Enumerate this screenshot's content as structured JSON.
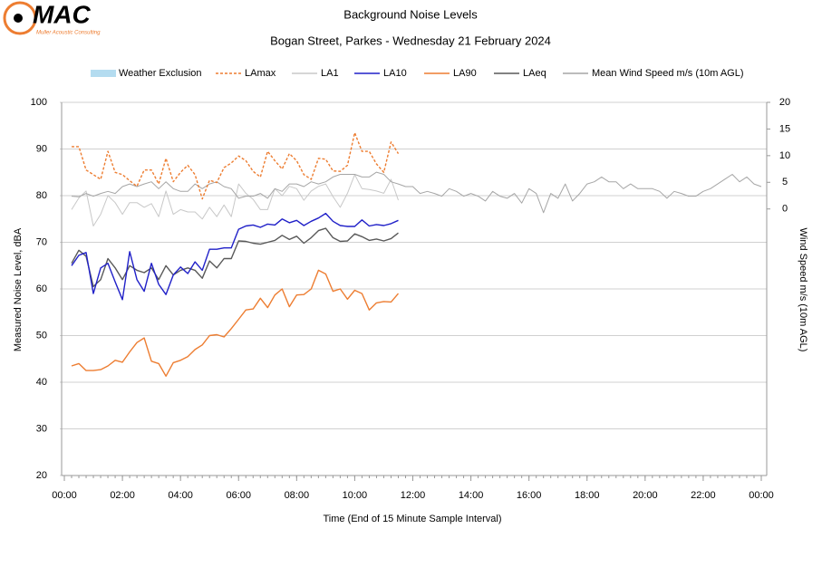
{
  "logo": {
    "text": "MAC",
    "tagline": "Muller Acoustic Consulting"
  },
  "chart_data": {
    "type": "line",
    "title": "Background Noise Levels",
    "subtitle": "Bogan Street, Parkes - Wednesday 21 February 2024",
    "xlabel": "Time (End of 15 Minute Sample Interval)",
    "ylabel": "Measured Noise Level, dBA",
    "y2label": "Wind Speed m/s (10m AGL)",
    "exclusion": {
      "name": "Weather Exclusion",
      "color": "#b4dcf0",
      "ranges": []
    },
    "xlim": [
      0,
      24
    ],
    "xticks": [
      {
        "value": 0,
        "label": "00:00"
      },
      {
        "value": 2,
        "label": "02:00"
      },
      {
        "value": 4,
        "label": "04:00"
      },
      {
        "value": 6,
        "label": "06:00"
      },
      {
        "value": 8,
        "label": "08:00"
      },
      {
        "value": 10,
        "label": "10:00"
      },
      {
        "value": 12,
        "label": "12:00"
      },
      {
        "value": 14,
        "label": "14:00"
      },
      {
        "value": 16,
        "label": "16:00"
      },
      {
        "value": 18,
        "label": "18:00"
      },
      {
        "value": 20,
        "label": "20:00"
      },
      {
        "value": 22,
        "label": "22:00"
      },
      {
        "value": 24,
        "label": "00:00"
      }
    ],
    "ylim": [
      20,
      100
    ],
    "yticks": [
      20,
      30,
      40,
      50,
      60,
      70,
      80,
      90,
      100
    ],
    "y2lim": [
      -50,
      20
    ],
    "y2ticks": [
      0,
      5,
      10,
      15,
      20
    ],
    "grid": true,
    "x": [
      0.25,
      0.5,
      0.75,
      1,
      1.25,
      1.5,
      1.75,
      2,
      2.25,
      2.5,
      2.75,
      3,
      3.25,
      3.5,
      3.75,
      4,
      4.25,
      4.5,
      4.75,
      5,
      5.25,
      5.5,
      5.75,
      6,
      6.25,
      6.5,
      6.75,
      7,
      7.25,
      7.5,
      7.75,
      8,
      8.25,
      8.5,
      8.75,
      9,
      9.25,
      9.5,
      9.75,
      10,
      10.25,
      10.5,
      10.75,
      11,
      11.25,
      11.5,
      11.75,
      12,
      12.25,
      12.5,
      12.75,
      13,
      13.25,
      13.5,
      13.75,
      14,
      14.25,
      14.5,
      14.75,
      15,
      15.25,
      15.5,
      15.75,
      16,
      16.25,
      16.5,
      16.75,
      17,
      17.25,
      17.5,
      17.75,
      18,
      18.25,
      18.5,
      18.75,
      19,
      19.25,
      19.5,
      19.75,
      20,
      20.25,
      20.5,
      20.75,
      21,
      21.25,
      21.5,
      21.75,
      22,
      22.25,
      22.5,
      22.75,
      23,
      23.25,
      23.5,
      23.75,
      24
    ],
    "series": [
      {
        "name": "LAmax",
        "color": "#ed7d31",
        "dashed": true,
        "values": [
          90.5,
          90.5,
          85.5,
          84.5,
          83.5,
          89.5,
          85,
          84.5,
          83.2,
          82,
          85.5,
          85.5,
          82.5,
          88,
          83,
          85,
          86.5,
          84.5,
          79.3,
          83.3,
          82.8,
          86,
          87,
          88.5,
          87.5,
          85.2,
          84,
          89.5,
          87.5,
          85.7,
          89,
          87.5,
          84.5,
          83.5,
          88,
          87.8,
          85.3,
          85.2,
          86.5,
          93.5,
          89.5,
          89.5,
          86.8,
          85,
          91.5,
          89,
          null,
          null,
          null,
          null,
          null,
          null,
          null,
          null,
          null,
          null,
          null,
          null,
          null,
          null,
          null,
          null,
          null,
          null,
          null,
          null,
          null,
          null,
          null,
          null,
          null,
          null,
          null,
          null,
          null,
          null,
          null,
          null,
          null,
          null,
          null,
          null,
          null,
          null,
          null,
          null,
          null,
          null,
          null,
          null,
          null,
          null,
          null,
          null,
          null,
          null
        ]
      },
      {
        "name": "LA1",
        "color": "#c8c8c8",
        "values": [
          77,
          79.5,
          81,
          73.5,
          76,
          80,
          78.5,
          76,
          78.5,
          78.5,
          77.5,
          78.3,
          75.5,
          81,
          76,
          77,
          76.5,
          76.5,
          75,
          77.5,
          75.5,
          78,
          75.5,
          82.5,
          80.5,
          79.2,
          77,
          77,
          81.5,
          80,
          82,
          81.5,
          79,
          81,
          82,
          82.5,
          79.8,
          77.5,
          80.5,
          84.5,
          81.5,
          81.3,
          81,
          80.5,
          83.5,
          79,
          null,
          null,
          null,
          null,
          null,
          null,
          null,
          null,
          null,
          null,
          null,
          null,
          null,
          null,
          null,
          null,
          null,
          null,
          null,
          null,
          null,
          null,
          null,
          null,
          null,
          null,
          null,
          null,
          null,
          null,
          null,
          null,
          null,
          null,
          null,
          null,
          null,
          null,
          null,
          null,
          null,
          null,
          null,
          null,
          null,
          null,
          null,
          null,
          null,
          null
        ]
      },
      {
        "name": "LA10",
        "color": "#2020c8",
        "values": [
          65,
          67.2,
          67.8,
          59,
          64.5,
          65.5,
          61.5,
          57.7,
          68,
          62,
          59.5,
          65.5,
          61,
          58.8,
          63,
          64.7,
          63.3,
          65.8,
          64,
          68.5,
          68.5,
          68.8,
          68.8,
          72.8,
          73.5,
          73.7,
          73.2,
          73.9,
          73.7,
          75,
          74.2,
          74.7,
          73.6,
          74.5,
          75.2,
          76.2,
          74.5,
          73.6,
          73.4,
          73.4,
          74.8,
          73.5,
          73.8,
          73.6,
          74,
          74.7,
          null,
          null,
          null,
          null,
          null,
          null,
          null,
          null,
          null,
          null,
          null,
          null,
          null,
          null,
          null,
          null,
          null,
          null,
          null,
          null,
          null,
          null,
          null,
          null,
          null,
          null,
          null,
          null,
          null,
          null,
          null,
          null,
          null,
          null,
          null,
          null,
          null,
          null,
          null,
          null,
          null,
          null,
          null,
          null,
          null,
          null,
          null,
          null,
          null,
          null
        ]
      },
      {
        "name": "LA90",
        "color": "#ed7d31",
        "values": [
          43.5,
          44,
          42.5,
          42.5,
          42.7,
          43.5,
          44.7,
          44.3,
          46.5,
          48.5,
          49.5,
          44.5,
          44,
          41.3,
          44.2,
          44.7,
          45.5,
          47,
          48,
          50,
          50.2,
          49.7,
          51.5,
          53.5,
          55.5,
          55.7,
          58,
          56,
          58.7,
          60,
          56.2,
          58.7,
          58.8,
          60,
          64,
          63.2,
          59.5,
          60,
          57.8,
          59.7,
          59,
          55.5,
          57,
          57.3,
          57.2,
          59,
          null,
          null,
          null,
          null,
          null,
          null,
          null,
          null,
          null,
          null,
          null,
          null,
          null,
          null,
          null,
          null,
          null,
          null,
          null,
          null,
          null,
          null,
          null,
          null,
          null,
          null,
          null,
          null,
          null,
          null,
          null,
          null,
          null,
          null,
          null,
          null,
          null,
          null,
          null,
          null,
          null,
          null,
          null,
          null,
          null,
          null,
          null,
          null,
          null,
          null
        ]
      },
      {
        "name": "LAeq",
        "color": "#595959",
        "values": [
          65.5,
          68.3,
          67,
          60.5,
          62,
          66.5,
          64.5,
          62,
          65,
          64,
          63.5,
          64.5,
          62,
          65,
          63,
          64,
          64.5,
          64,
          62.3,
          66,
          64.5,
          66.5,
          66.5,
          70.3,
          70.2,
          69.8,
          69.6,
          70,
          70.4,
          71.5,
          70.6,
          71.3,
          69.8,
          71,
          72.5,
          73,
          71,
          70.2,
          70.3,
          71.8,
          71.2,
          70.4,
          70.7,
          70.3,
          70.8,
          72,
          null,
          null,
          null,
          null,
          null,
          null,
          null,
          null,
          null,
          null,
          null,
          null,
          null,
          null,
          null,
          null,
          null,
          null,
          null,
          null,
          null,
          null,
          null,
          null,
          null,
          null,
          null,
          null,
          null,
          null,
          null,
          null,
          null,
          null,
          null,
          null,
          null,
          null,
          null,
          null,
          null,
          null,
          null,
          null,
          null,
          null,
          null,
          null,
          null,
          null
        ]
      },
      {
        "name": "Mean Wind Speed m/s (10m AGL)",
        "color": "#a6a6a6",
        "axis": "y2",
        "values": [
          2.4,
          2.3,
          2.9,
          2.4,
          2.9,
          3.3,
          2.9,
          4.2,
          4.7,
          4.2,
          4.7,
          5.1,
          3.8,
          5.1,
          3.8,
          3.3,
          3.3,
          4.7,
          3.8,
          4.7,
          5.1,
          4.2,
          3.8,
          2.0,
          2.4,
          2.4,
          2.9,
          2.0,
          3.8,
          3.3,
          4.7,
          4.7,
          4.2,
          5.1,
          4.7,
          5.1,
          6.0,
          6.5,
          6.5,
          6.5,
          6.0,
          6.0,
          6.9,
          6.5,
          5.1,
          4.7,
          4.2,
          4.2,
          2.9,
          3.3,
          2.9,
          2.4,
          3.8,
          3.3,
          2.4,
          2.9,
          2.4,
          1.5,
          3.3,
          2.4,
          2.0,
          2.9,
          1.1,
          3.8,
          2.9,
          -0.7,
          2.9,
          2.0,
          4.7,
          1.5,
          2.9,
          4.7,
          5.1,
          6.0,
          5.1,
          5.1,
          3.8,
          4.7,
          3.8,
          3.8,
          3.8,
          3.3,
          2.0,
          3.3,
          2.9,
          2.4,
          2.4,
          3.3,
          3.8,
          4.7,
          5.6,
          6.5,
          5.1,
          6.0,
          4.7,
          4.2
        ]
      }
    ]
  }
}
